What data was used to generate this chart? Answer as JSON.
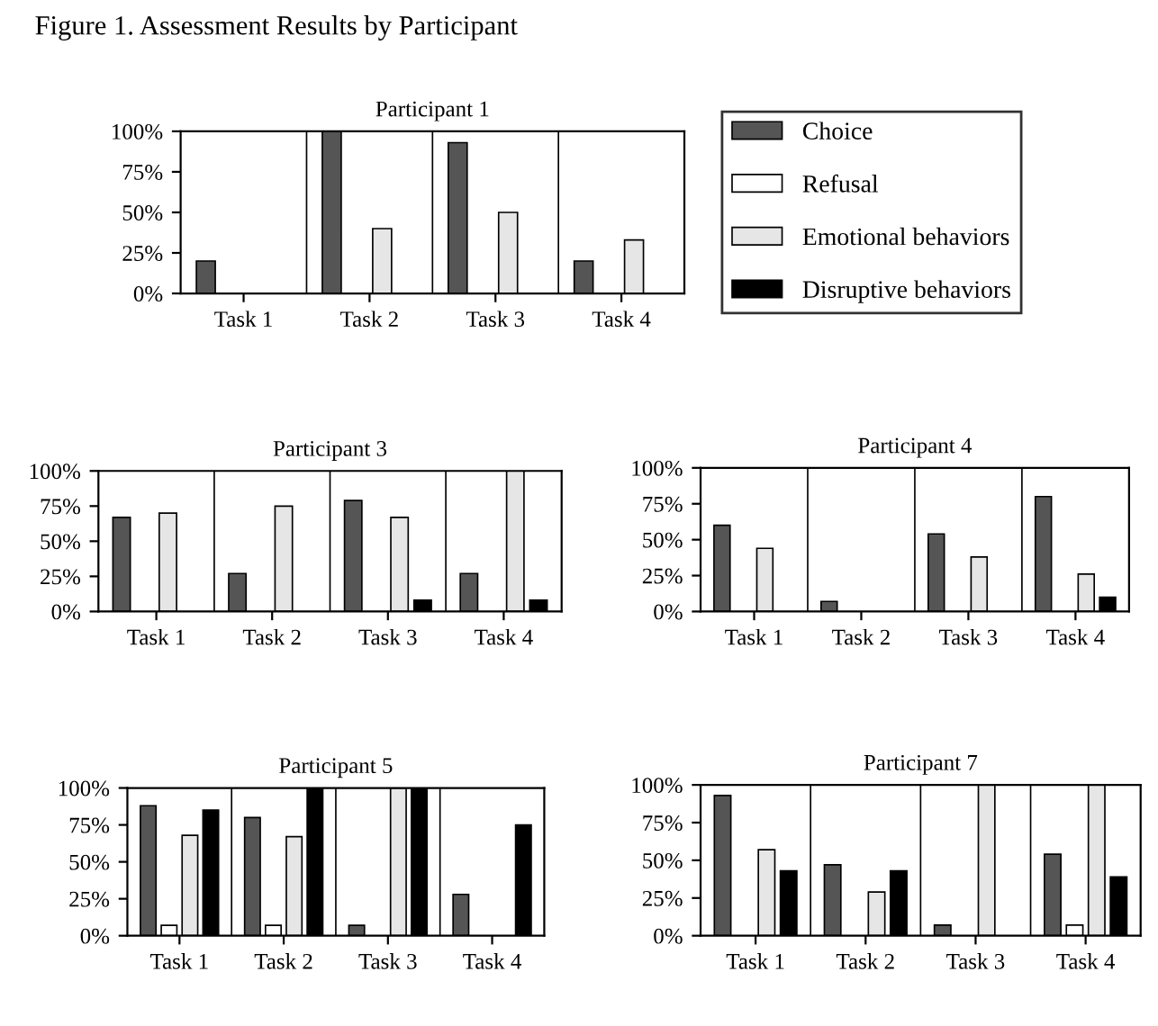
{
  "chart_data": [
    {
      "type": "bar",
      "title": "Participant 1",
      "annotations": [
        "Figure 1. Assessment Results by Participant"
      ],
      "categories": [
        "Task 1",
        "Task 2",
        "Task 3",
        "Task 4"
      ],
      "ylim": [
        0,
        100
      ],
      "yticks": [
        {
          "value": 0,
          "label": "0%"
        },
        {
          "value": 25,
          "label": "25%"
        },
        {
          "value": 50,
          "label": "50%"
        },
        {
          "value": 75,
          "label": "75%"
        },
        {
          "value": 100,
          "label": "100%"
        }
      ],
      "legend": "right",
      "series": [
        {
          "name": "Choice",
          "color": "#555555",
          "values": [
            20,
            100,
            93,
            20
          ]
        },
        {
          "name": "Refusal",
          "color": "#ffffff",
          "values": [
            null,
            null,
            null,
            null
          ]
        },
        {
          "name": "Emotional behaviors",
          "color": "#e6e6e6",
          "values": [
            null,
            40,
            50,
            33
          ]
        },
        {
          "name": "Disruptive behaviors",
          "color": "#000000",
          "values": [
            null,
            null,
            null,
            null
          ]
        }
      ]
    },
    {
      "type": "bar",
      "title": "Participant 3",
      "categories": [
        "Task 1",
        "Task 2",
        "Task 3",
        "Task 4"
      ],
      "ylim": [
        0,
        100
      ],
      "yticks": [
        {
          "value": 0,
          "label": "0%"
        },
        {
          "value": 25,
          "label": "25%"
        },
        {
          "value": 50,
          "label": "50%"
        },
        {
          "value": 75,
          "label": "75%"
        },
        {
          "value": 100,
          "label": "100%"
        }
      ],
      "series": [
        {
          "color": "#555555",
          "values": [
            67,
            27,
            79,
            27
          ]
        },
        {
          "color": "#ffffff",
          "values": [
            null,
            null,
            null,
            null
          ]
        },
        {
          "color": "#e6e6e6",
          "values": [
            70,
            75,
            67,
            100
          ]
        },
        {
          "color": "#000000",
          "values": [
            null,
            null,
            8,
            8
          ]
        }
      ]
    },
    {
      "type": "bar",
      "title": "Participant 4",
      "categories": [
        "Task 1",
        "Task 2",
        "Task 3",
        "Task 4"
      ],
      "ylim": [
        0,
        100
      ],
      "yticks": [
        {
          "value": 0,
          "label": "0%"
        },
        {
          "value": 25,
          "label": "25%"
        },
        {
          "value": 50,
          "label": "50%"
        },
        {
          "value": 75,
          "label": "75%"
        },
        {
          "value": 100,
          "label": "100%"
        }
      ],
      "series": [
        {
          "color": "#555555",
          "values": [
            60,
            7,
            54,
            80
          ]
        },
        {
          "color": "#ffffff",
          "values": [
            null,
            null,
            null,
            null
          ]
        },
        {
          "color": "#e6e6e6",
          "values": [
            44,
            null,
            38,
            26
          ]
        },
        {
          "color": "#000000",
          "values": [
            null,
            null,
            null,
            10
          ]
        }
      ]
    },
    {
      "type": "bar",
      "title": "Participant 5",
      "categories": [
        "Task 1",
        "Task 2",
        "Task 3",
        "Task 4"
      ],
      "ylim": [
        0,
        100
      ],
      "yticks": [
        {
          "value": 0,
          "label": "0%"
        },
        {
          "value": 25,
          "label": "25%"
        },
        {
          "value": 50,
          "label": "50%"
        },
        {
          "value": 75,
          "label": "75%"
        },
        {
          "value": 100,
          "label": "100%"
        }
      ],
      "series": [
        {
          "color": "#555555",
          "values": [
            88,
            80,
            7,
            28
          ]
        },
        {
          "color": "#ffffff",
          "values": [
            7,
            7,
            null,
            null
          ]
        },
        {
          "color": "#e6e6e6",
          "values": [
            68,
            67,
            100,
            null
          ]
        },
        {
          "color": "#000000",
          "values": [
            85,
            100,
            100,
            75
          ]
        }
      ]
    },
    {
      "type": "bar",
      "title": "Participant 7",
      "categories": [
        "Task 1",
        "Task 2",
        "Task 3",
        "Task 4"
      ],
      "ylim": [
        0,
        100
      ],
      "yticks": [
        {
          "value": 0,
          "label": "0%"
        },
        {
          "value": 25,
          "label": "25%"
        },
        {
          "value": 50,
          "label": "50%"
        },
        {
          "value": 75,
          "label": "75%"
        },
        {
          "value": 100,
          "label": "100%"
        }
      ],
      "series": [
        {
          "color": "#555555",
          "values": [
            93,
            47,
            7,
            54
          ]
        },
        {
          "color": "#ffffff",
          "values": [
            null,
            null,
            null,
            7
          ]
        },
        {
          "color": "#e6e6e6",
          "values": [
            57,
            29,
            100,
            100
          ]
        },
        {
          "color": "#000000",
          "values": [
            43,
            43,
            null,
            39
          ]
        }
      ]
    }
  ]
}
